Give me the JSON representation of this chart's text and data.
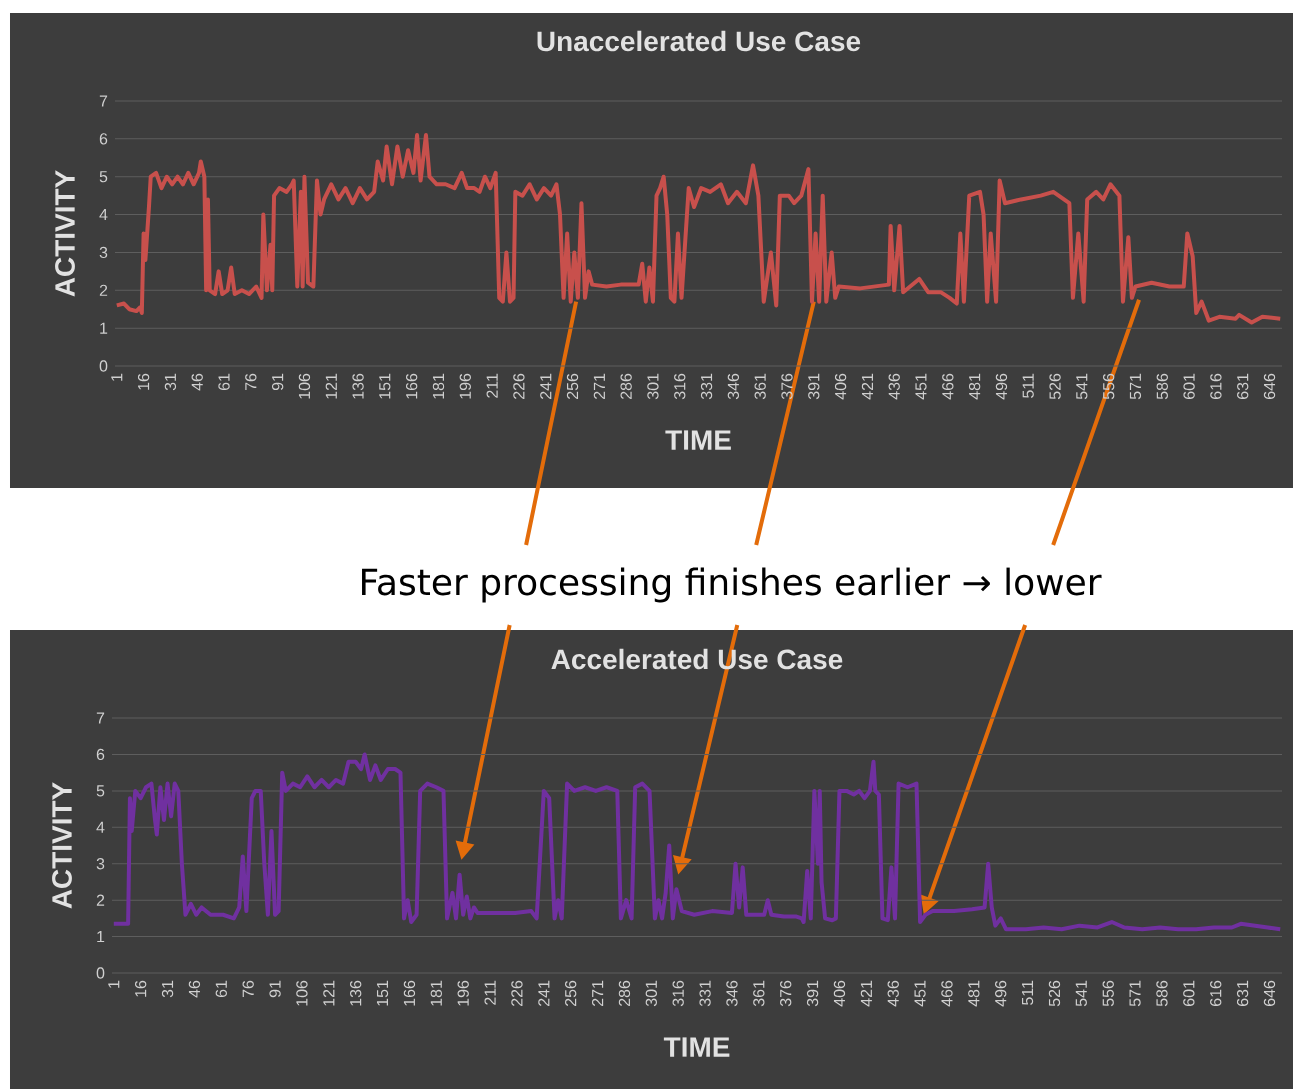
{
  "chart_data": [
    {
      "type": "line",
      "title": "Unaccelerated Use Case",
      "xlabel": "TIME",
      "ylabel": "ACTIVITY",
      "grid": "y",
      "annotations": [
        {
          "text": "Faster processing finishes earlier → lower",
          "x": 391,
          "y": 1.7
        }
      ],
      "xlim": [
        0,
        653
      ],
      "ylim": [
        0,
        7
      ],
      "yticks": [
        0,
        1,
        2,
        3,
        4,
        5,
        6,
        7
      ],
      "xticks": [
        1,
        16,
        31,
        46,
        61,
        76,
        91,
        106,
        121,
        136,
        151,
        166,
        181,
        196,
        211,
        226,
        241,
        256,
        271,
        286,
        301,
        316,
        331,
        346,
        361,
        376,
        391,
        406,
        421,
        436,
        451,
        466,
        481,
        496,
        511,
        526,
        541,
        556,
        571,
        586,
        601,
        616,
        631,
        646
      ],
      "x": [
        1,
        5,
        8,
        12,
        14,
        15,
        16,
        17,
        19,
        20,
        23,
        26,
        29,
        32,
        35,
        38,
        41,
        44,
        47,
        48,
        50,
        51,
        52,
        53,
        56,
        58,
        60,
        63,
        65,
        67,
        71,
        75,
        79,
        82,
        83,
        85,
        87,
        88,
        89,
        92,
        96,
        99,
        100,
        102,
        104,
        105,
        106,
        108,
        111,
        113,
        115,
        117,
        121,
        125,
        129,
        133,
        137,
        141,
        145,
        147,
        150,
        152,
        155,
        158,
        161,
        164,
        167,
        169,
        171,
        174,
        176,
        180,
        185,
        190,
        194,
        197,
        201,
        204,
        207,
        210,
        213,
        215,
        217,
        219,
        221,
        223,
        224,
        228,
        232,
        236,
        240,
        244,
        247,
        249,
        251,
        253,
        255,
        257,
        259,
        261,
        263,
        265,
        267,
        275,
        283,
        293,
        295,
        297,
        299,
        301,
        303,
        305,
        307,
        309,
        311,
        313,
        315,
        317,
        321,
        324,
        328,
        333,
        339,
        343,
        348,
        353,
        357,
        360,
        363,
        367,
        370,
        372,
        377,
        380,
        384,
        388,
        390,
        392,
        394,
        396,
        398,
        401,
        403,
        405,
        417,
        433,
        434,
        436,
        439,
        441,
        450,
        455,
        462,
        467,
        471,
        473,
        475,
        478,
        484,
        486,
        488,
        490,
        493,
        495,
        498,
        507,
        518,
        525,
        531,
        534,
        536,
        539,
        542,
        544,
        549,
        553,
        557,
        562,
        564,
        567,
        569,
        571,
        580,
        590,
        598,
        600,
        603,
        605,
        608,
        612,
        618,
        627,
        629,
        636,
        642,
        652
      ],
      "series": [
        {
          "color": "#c8504c",
          "values": [
            1.6,
            1.65,
            1.5,
            1.45,
            1.55,
            1.4,
            3.5,
            2.8,
            4.2,
            5.0,
            5.1,
            4.7,
            5.0,
            4.8,
            5.0,
            4.8,
            5.1,
            4.8,
            5.1,
            5.4,
            5.0,
            2.0,
            4.4,
            2.0,
            1.9,
            2.5,
            1.9,
            2.0,
            2.6,
            1.9,
            2.0,
            1.9,
            2.1,
            1.8,
            4.0,
            2.0,
            3.2,
            2.0,
            4.5,
            4.7,
            4.6,
            4.8,
            4.9,
            2.1,
            4.6,
            2.1,
            5.0,
            2.2,
            2.1,
            4.9,
            4.0,
            4.4,
            4.8,
            4.4,
            4.7,
            4.3,
            4.7,
            4.4,
            4.6,
            5.4,
            4.9,
            5.8,
            4.8,
            5.8,
            5.0,
            5.7,
            5.1,
            6.1,
            4.9,
            6.1,
            5.0,
            4.8,
            4.8,
            4.7,
            5.1,
            4.7,
            4.7,
            4.6,
            5.0,
            4.7,
            5.1,
            1.8,
            1.7,
            3.0,
            1.7,
            1.8,
            4.6,
            4.5,
            4.8,
            4.4,
            4.7,
            4.5,
            4.8,
            4.0,
            1.8,
            3.5,
            1.7,
            3.0,
            1.8,
            4.3,
            1.8,
            2.5,
            2.15,
            2.1,
            2.15,
            2.15,
            2.7,
            1.7,
            2.6,
            1.7,
            4.5,
            4.7,
            5.0,
            4.0,
            1.8,
            1.7,
            3.5,
            1.8,
            4.7,
            4.2,
            4.7,
            4.6,
            4.8,
            4.3,
            4.6,
            4.3,
            5.3,
            4.5,
            1.7,
            3.0,
            1.6,
            4.5,
            4.5,
            4.3,
            4.5,
            5.2,
            1.7,
            3.5,
            1.7,
            4.5,
            1.7,
            3.0,
            1.8,
            2.1,
            2.05,
            2.15,
            3.7,
            2.0,
            3.7,
            1.95,
            2.3,
            1.95,
            1.95,
            1.8,
            1.65,
            3.5,
            1.7,
            4.5,
            4.6,
            4.0,
            1.7,
            3.5,
            1.7,
            4.9,
            4.3,
            4.4,
            4.5,
            4.6,
            4.4,
            4.3,
            1.8,
            3.5,
            1.7,
            4.4,
            4.6,
            4.4,
            4.8,
            4.5,
            1.7,
            3.4,
            1.8,
            2.1,
            2.2,
            2.1,
            2.1,
            3.5,
            2.9,
            1.4,
            1.7,
            1.2,
            1.3,
            1.25,
            1.35,
            1.15,
            1.3,
            1.25
          ]
        }
      ]
    },
    {
      "type": "line",
      "title": "Accelerated Use Case",
      "xlabel": "TIME",
      "ylabel": "ACTIVITY",
      "grid": "y",
      "xlim": [
        0,
        653
      ],
      "ylim": [
        0,
        7
      ],
      "yticks": [
        0,
        1,
        2,
        3,
        4,
        5,
        6,
        7
      ],
      "xticks": [
        1,
        16,
        31,
        46,
        61,
        76,
        91,
        106,
        121,
        136,
        151,
        166,
        181,
        196,
        211,
        226,
        241,
        256,
        271,
        286,
        301,
        316,
        331,
        346,
        361,
        376,
        391,
        406,
        421,
        436,
        451,
        466,
        481,
        496,
        511,
        526,
        541,
        556,
        571,
        586,
        601,
        616,
        631,
        646
      ],
      "x": [
        1,
        9,
        10,
        11,
        13,
        16,
        19,
        22,
        24,
        25,
        27,
        29,
        31,
        33,
        35,
        37,
        39,
        41,
        44,
        47,
        50,
        55,
        62,
        68,
        71,
        73,
        75,
        78,
        80,
        83,
        85,
        87,
        89,
        91,
        93,
        95,
        97,
        101,
        105,
        109,
        113,
        117,
        121,
        125,
        129,
        132,
        136,
        139,
        141,
        144,
        147,
        150,
        154,
        158,
        161,
        163,
        165,
        167,
        170,
        172,
        176,
        181,
        185,
        187,
        190,
        192,
        194,
        196,
        198,
        200,
        202,
        204,
        215,
        225,
        234,
        237,
        241,
        244,
        247,
        249,
        251,
        254,
        258,
        264,
        270,
        276,
        282,
        284,
        287,
        290,
        292,
        296,
        300,
        303,
        305,
        307,
        309,
        311,
        313,
        315,
        318,
        325,
        335,
        346,
        348,
        350,
        352,
        354,
        361,
        364,
        366,
        368,
        375,
        382,
        385,
        386,
        388,
        390,
        392,
        394,
        395,
        396,
        398,
        402,
        404,
        406,
        410,
        414,
        417,
        420,
        423,
        425,
        426,
        428,
        430,
        433,
        435,
        437,
        439,
        444,
        449,
        451,
        454,
        458,
        470,
        480,
        487,
        489,
        491,
        493,
        496,
        499,
        510,
        520,
        530,
        540,
        550,
        558,
        565,
        575,
        585,
        595,
        605,
        615,
        625,
        630,
        638,
        645,
        652
      ],
      "series": [
        {
          "color": "#7030a0",
          "values": [
            1.35,
            1.35,
            4.8,
            3.9,
            5.0,
            4.8,
            5.1,
            5.2,
            4.2,
            3.8,
            5.1,
            4.2,
            5.2,
            4.3,
            5.2,
            5.0,
            3.0,
            1.6,
            1.9,
            1.6,
            1.8,
            1.6,
            1.6,
            1.5,
            1.8,
            3.2,
            1.7,
            4.8,
            5.0,
            5.0,
            3.0,
            1.6,
            3.9,
            1.6,
            1.7,
            5.5,
            5.0,
            5.2,
            5.1,
            5.4,
            5.1,
            5.3,
            5.1,
            5.3,
            5.2,
            5.8,
            5.8,
            5.6,
            6.0,
            5.3,
            5.7,
            5.3,
            5.6,
            5.6,
            5.5,
            1.5,
            2.0,
            1.4,
            1.6,
            5.0,
            5.2,
            5.1,
            5.0,
            1.5,
            2.2,
            1.5,
            2.7,
            1.6,
            2.1,
            1.5,
            1.8,
            1.65,
            1.65,
            1.65,
            1.7,
            1.5,
            5.0,
            4.8,
            1.5,
            2.0,
            1.5,
            5.2,
            5.0,
            5.1,
            5.0,
            5.1,
            5.0,
            1.5,
            2.0,
            1.5,
            5.1,
            5.2,
            5.0,
            1.5,
            2.0,
            1.5,
            2.2,
            3.5,
            1.5,
            2.3,
            1.7,
            1.6,
            1.7,
            1.65,
            3.0,
            1.8,
            2.9,
            1.6,
            1.6,
            1.6,
            2.0,
            1.6,
            1.55,
            1.55,
            1.5,
            1.4,
            2.8,
            1.5,
            5.0,
            3.0,
            5.0,
            2.5,
            1.5,
            1.45,
            1.5,
            5.0,
            5.0,
            4.9,
            5.0,
            4.8,
            5.0,
            5.8,
            5.0,
            4.9,
            1.5,
            1.45,
            2.9,
            1.5,
            5.2,
            5.1,
            5.2,
            1.4,
            1.6,
            1.7,
            1.7,
            1.75,
            1.8,
            3.0,
            1.8,
            1.3,
            1.5,
            1.2,
            1.2,
            1.25,
            1.2,
            1.3,
            1.25,
            1.4,
            1.25,
            1.2,
            1.25,
            1.2,
            1.2,
            1.25,
            1.25,
            1.35,
            1.3,
            1.25,
            1.2
          ]
        }
      ]
    }
  ]
}
